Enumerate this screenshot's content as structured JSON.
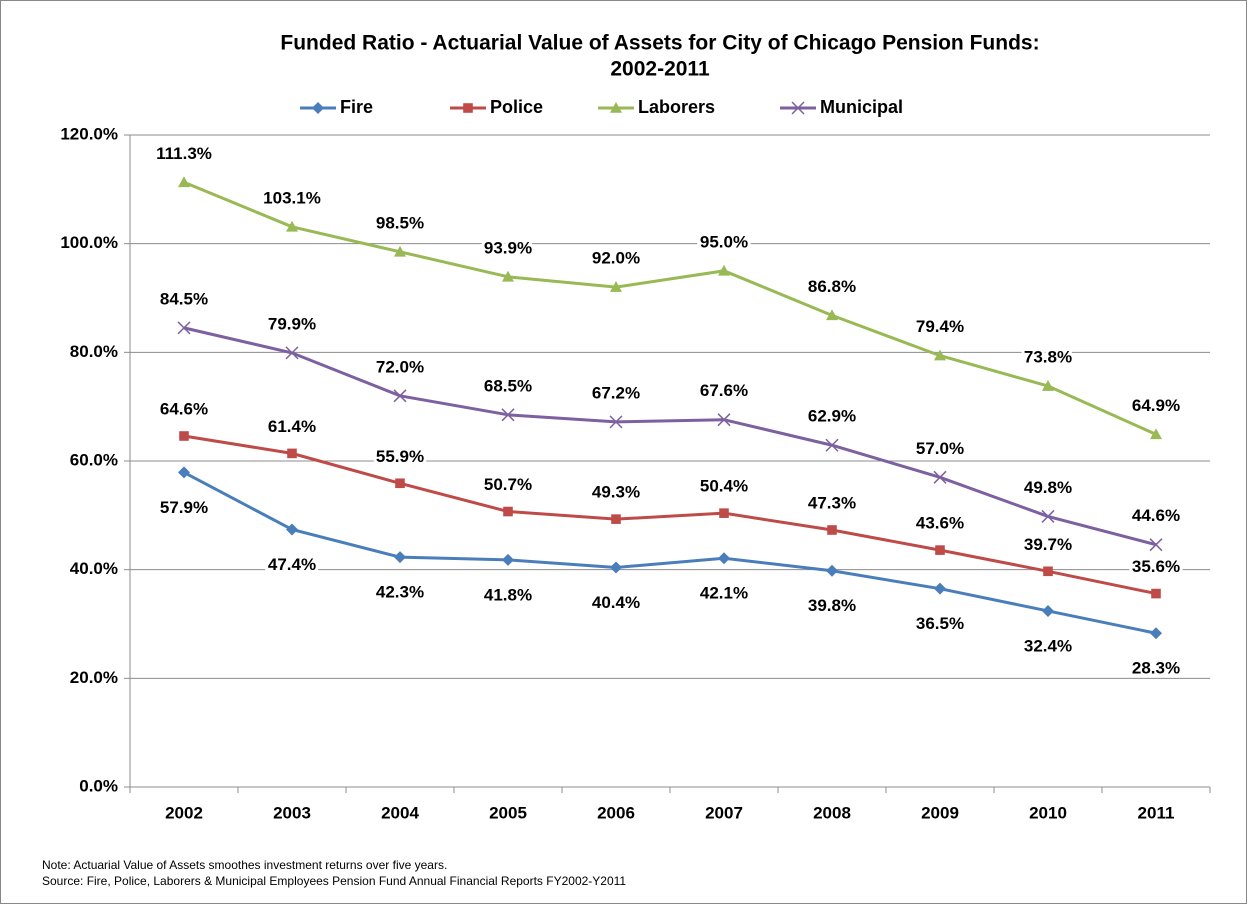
{
  "chart_data": {
    "type": "line",
    "title": [
      "Funded Ratio - Actuarial Value of Assets for City of Chicago Pension Funds:",
      "2002-2011"
    ],
    "categories": [
      "2002",
      "2003",
      "2004",
      "2005",
      "2006",
      "2007",
      "2008",
      "2009",
      "2010",
      "2011"
    ],
    "series": [
      {
        "name": "Fire",
        "color": "#4a7ebb",
        "marker": "diamond",
        "values": [
          57.9,
          47.4,
          42.3,
          41.8,
          40.4,
          42.1,
          39.8,
          36.5,
          32.4,
          28.3
        ],
        "value_labels": [
          "57.9%",
          "47.4%",
          "42.3%",
          "41.8%",
          "40.4%",
          "42.1%",
          "39.8%",
          "36.5%",
          "32.4%",
          "28.3%"
        ]
      },
      {
        "name": "Police",
        "color": "#be4b48",
        "marker": "square",
        "values": [
          64.6,
          61.4,
          55.9,
          50.7,
          49.3,
          50.4,
          47.3,
          43.6,
          39.7,
          35.6
        ],
        "value_labels": [
          "64.6%",
          "61.4%",
          "55.9%",
          "50.7%",
          "49.3%",
          "50.4%",
          "47.3%",
          "43.6%",
          "39.7%",
          "35.6%"
        ]
      },
      {
        "name": "Laborers",
        "color": "#98b954",
        "marker": "triangle",
        "values": [
          111.3,
          103.1,
          98.5,
          93.9,
          92.0,
          95.0,
          86.8,
          79.4,
          73.8,
          64.9
        ],
        "value_labels": [
          "111.3%",
          "103.1%",
          "98.5%",
          "93.9%",
          "92.0%",
          "95.0%",
          "86.8%",
          "79.4%",
          "73.8%",
          "64.9%"
        ]
      },
      {
        "name": "Municipal",
        "color": "#7d60a0",
        "marker": "x",
        "values": [
          84.5,
          79.9,
          72.0,
          68.5,
          67.2,
          67.6,
          62.9,
          57.0,
          49.8,
          44.6
        ],
        "value_labels": [
          "84.5%",
          "79.9%",
          "72.0%",
          "68.5%",
          "67.2%",
          "67.6%",
          "62.9%",
          "57.0%",
          "49.8%",
          "44.6%"
        ]
      }
    ],
    "ylim": [
      0,
      120
    ],
    "yticks": [
      {
        "value": 0,
        "label": "0.0%"
      },
      {
        "value": 20,
        "label": "20.0%"
      },
      {
        "value": 40,
        "label": "40.0%"
      },
      {
        "value": 60,
        "label": "60.0%"
      },
      {
        "value": 80,
        "label": "80.0%"
      },
      {
        "value": 100,
        "label": "100.0%"
      },
      {
        "value": 120,
        "label": "120.0%"
      }
    ],
    "grid": true,
    "legend": "top",
    "note": "Note: Actuarial  Value of Assets smoothes investment returns over five years.",
    "source": "Source: Fire, Police, Laborers & Municipal Employees Pension Fund Annual Financial Reports FY2002-Y2011"
  }
}
